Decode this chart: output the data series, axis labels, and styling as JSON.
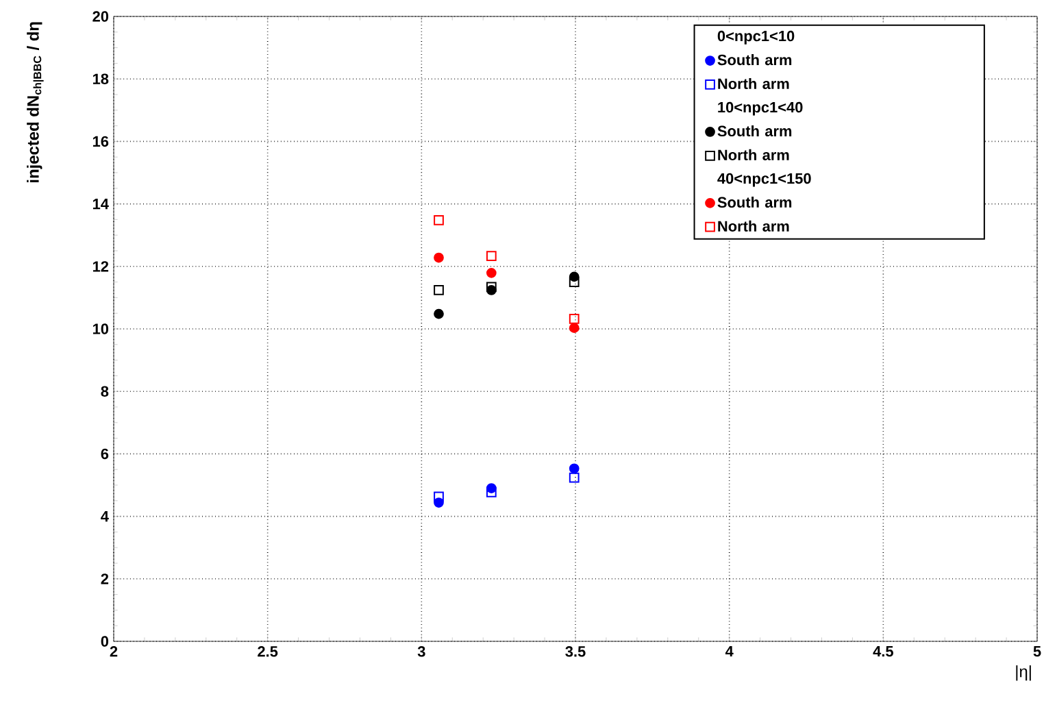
{
  "chart_data": {
    "type": "scatter",
    "xlabel": "|η|",
    "ylabel": "injected dN$_{ch|BBC}$ / dη",
    "annotations": [
      "0<npc1<10",
      "10<npc1<40",
      "40<npc1<150"
    ],
    "x": [
      3.056,
      3.227,
      3.496
    ],
    "series": [
      {
        "name": "South arm",
        "color": "#0000ff",
        "marker": "circle",
        "values": [
          4.44,
          4.9,
          5.53
        ]
      },
      {
        "name": "North arm",
        "color": "#0000ff",
        "marker": "square",
        "values": [
          4.63,
          4.77,
          5.24
        ]
      },
      {
        "name": "South arm",
        "color": "#000000",
        "marker": "circle",
        "values": [
          10.48,
          11.24,
          11.67
        ]
      },
      {
        "name": "North arm",
        "color": "#000000",
        "marker": "square",
        "values": [
          11.24,
          11.34,
          11.5
        ]
      },
      {
        "name": "South arm",
        "color": "#ff0000",
        "marker": "circle",
        "values": [
          12.28,
          11.79,
          10.03
        ]
      },
      {
        "name": "North arm",
        "color": "#ff0000",
        "marker": "square",
        "values": [
          13.48,
          12.33,
          10.32
        ]
      }
    ],
    "xlim": [
      2,
      5
    ],
    "ylim": [
      0,
      20
    ],
    "xticks": [
      2,
      2.5,
      3,
      3.5,
      4,
      4.5,
      5
    ],
    "yticks": [
      0,
      2,
      4,
      6,
      8,
      10,
      12,
      14,
      16,
      18,
      20
    ],
    "grid": true,
    "legend": "top right"
  }
}
